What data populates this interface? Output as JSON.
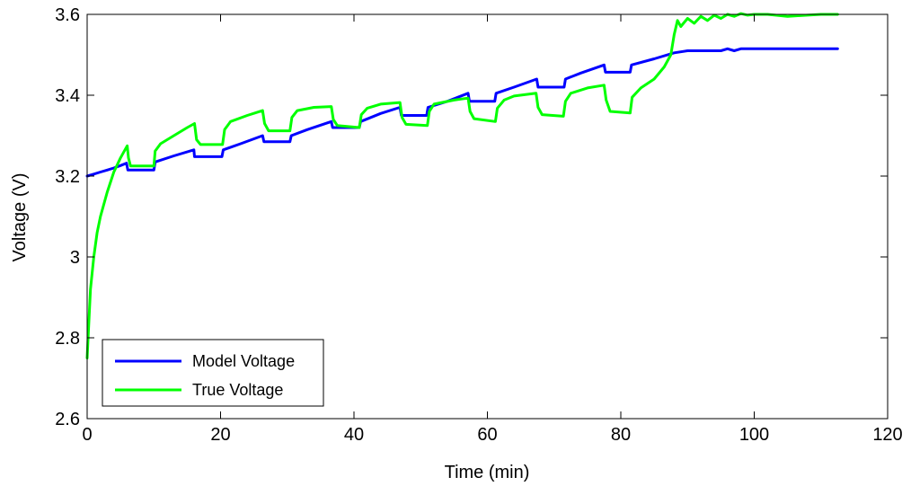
{
  "chart_data": {
    "type": "line",
    "xlabel": "Time (min)",
    "ylabel": "Voltage (V)",
    "xlim": [
      0,
      120
    ],
    "ylim": [
      2.6,
      3.6
    ],
    "xticks": [
      0,
      20,
      40,
      60,
      80,
      100,
      120
    ],
    "xtick_labels": [
      "0",
      "20",
      "40",
      "60",
      "80",
      "100",
      "120"
    ],
    "yticks": [
      2.6,
      2.8,
      3.0,
      3.2,
      3.4,
      3.6
    ],
    "ytick_labels": [
      "2.6",
      "2.8",
      "3",
      "3.2",
      "3.4",
      "3.6"
    ],
    "grid": false,
    "legend_position": "bottom-left",
    "series": [
      {
        "name": "Model Voltage",
        "color": "#0000ff",
        "x": [
          0,
          1,
          2,
          3,
          4,
          5,
          5.9,
          6.1,
          10.0,
          10.2,
          13,
          16,
          16.1,
          20.2,
          20.4,
          23,
          26.3,
          26.5,
          30.4,
          30.6,
          33,
          36.6,
          36.8,
          40.8,
          41.0,
          44,
          46.9,
          47.1,
          50.9,
          51.1,
          54,
          57.1,
          57.3,
          61.1,
          61.3,
          64,
          67.4,
          67.6,
          71.5,
          71.7,
          74,
          77.5,
          77.7,
          81.4,
          81.6,
          85,
          88,
          90,
          95,
          96,
          97,
          98,
          100,
          105,
          112.5
        ],
        "y": [
          3.2,
          3.205,
          3.21,
          3.215,
          3.22,
          3.226,
          3.232,
          3.215,
          3.215,
          3.235,
          3.25,
          3.265,
          3.248,
          3.248,
          3.265,
          3.28,
          3.3,
          3.285,
          3.285,
          3.3,
          3.315,
          3.335,
          3.32,
          3.32,
          3.335,
          3.355,
          3.37,
          3.35,
          3.35,
          3.37,
          3.385,
          3.405,
          3.385,
          3.385,
          3.405,
          3.42,
          3.44,
          3.42,
          3.42,
          3.44,
          3.455,
          3.475,
          3.457,
          3.457,
          3.475,
          3.49,
          3.505,
          3.51,
          3.51,
          3.515,
          3.51,
          3.515,
          3.515,
          3.515,
          3.515
        ]
      },
      {
        "name": "True Voltage",
        "color": "#00ff00",
        "x": [
          0,
          0.2,
          0.5,
          1,
          1.5,
          2,
          3,
          4,
          5,
          6,
          6.2,
          6.5,
          10.0,
          10.2,
          11,
          13,
          15,
          16.1,
          16.4,
          17,
          20.3,
          20.6,
          21.5,
          24,
          26.3,
          26.6,
          27.2,
          30.4,
          30.7,
          31.5,
          34,
          36.6,
          36.9,
          37.5,
          40.8,
          41.1,
          42,
          44,
          46.9,
          47.2,
          47.8,
          51.0,
          51.3,
          52,
          55,
          57.1,
          57.4,
          58,
          61.2,
          61.5,
          62.5,
          64,
          67.3,
          67.6,
          68.2,
          71.4,
          71.7,
          72.5,
          75,
          77.5,
          77.8,
          78.4,
          81.4,
          81.7,
          83,
          85,
          86.5,
          87.5,
          88,
          88.5,
          89,
          89.5,
          90,
          91,
          92,
          93,
          94,
          95,
          96,
          97,
          98,
          99,
          100,
          102,
          105,
          108,
          110,
          112.5
        ],
        "y": [
          2.75,
          2.82,
          2.92,
          3.0,
          3.06,
          3.1,
          3.16,
          3.21,
          3.245,
          3.275,
          3.245,
          3.225,
          3.225,
          3.262,
          3.28,
          3.3,
          3.32,
          3.33,
          3.29,
          3.278,
          3.278,
          3.315,
          3.335,
          3.35,
          3.362,
          3.33,
          3.312,
          3.312,
          3.345,
          3.362,
          3.37,
          3.372,
          3.34,
          3.325,
          3.32,
          3.352,
          3.368,
          3.378,
          3.382,
          3.345,
          3.328,
          3.325,
          3.36,
          3.378,
          3.388,
          3.393,
          3.36,
          3.342,
          3.335,
          3.368,
          3.388,
          3.398,
          3.405,
          3.37,
          3.352,
          3.348,
          3.385,
          3.405,
          3.418,
          3.425,
          3.388,
          3.36,
          3.356,
          3.395,
          3.418,
          3.44,
          3.47,
          3.5,
          3.55,
          3.585,
          3.57,
          3.58,
          3.59,
          3.578,
          3.595,
          3.585,
          3.598,
          3.59,
          3.6,
          3.595,
          3.602,
          3.598,
          3.6,
          3.6,
          3.595,
          3.598,
          3.6,
          3.6
        ]
      }
    ]
  }
}
